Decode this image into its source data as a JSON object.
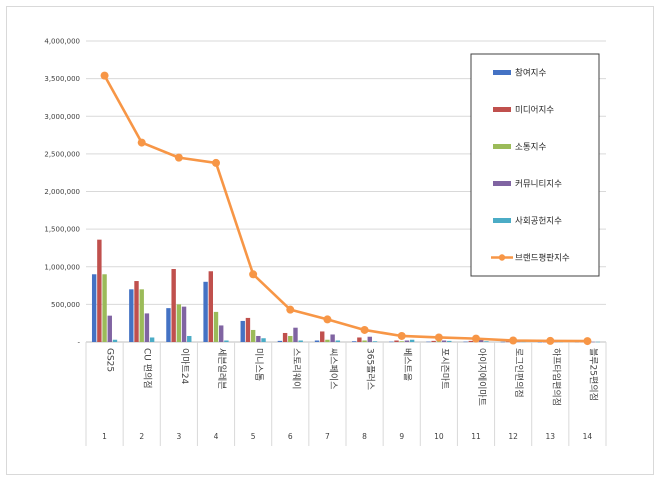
{
  "chart_data": {
    "type": "bar",
    "categories": [
      "GS25",
      "CU 편의점",
      "이마트24",
      "세븐일레븐",
      "미니스톱",
      "스토리웨이",
      "씨스페이스",
      "365플러스",
      "베스트올",
      "포시즌마트",
      "아이지에이마트",
      "로그인편의점",
      "하프타임편의점",
      "블루25편의점"
    ],
    "index_labels": [
      "1",
      "2",
      "3",
      "4",
      "5",
      "6",
      "7",
      "8",
      "9",
      "10",
      "11",
      "12",
      "13",
      "14"
    ],
    "ylim": [
      0,
      4000000
    ],
    "yticks": [
      0,
      500000,
      1000000,
      1500000,
      2000000,
      2500000,
      3000000,
      3500000,
      4000000
    ],
    "ytick_labels": [
      "-",
      "500,000",
      "1,000,000",
      "1,500,000",
      "2,000,000",
      "2,500,000",
      "3,000,000",
      "3,500,000",
      "4,000,000"
    ],
    "grid": true,
    "legend_position": "right",
    "series": [
      {
        "name": "참여지수",
        "type": "bar",
        "color": "#4472c4",
        "values": [
          900000,
          700000,
          450000,
          800000,
          280000,
          15000,
          20000,
          10000,
          5000,
          5000,
          5000,
          3000,
          2000,
          2000
        ]
      },
      {
        "name": "미디어지수",
        "type": "bar",
        "color": "#c0504d",
        "values": [
          1360000,
          810000,
          970000,
          940000,
          320000,
          120000,
          140000,
          60000,
          20000,
          15000,
          15000,
          5000,
          3000,
          3000
        ]
      },
      {
        "name": "소통지수",
        "type": "bar",
        "color": "#9bbb59",
        "values": [
          900000,
          700000,
          500000,
          400000,
          160000,
          80000,
          30000,
          20000,
          10000,
          10000,
          10000,
          5000,
          3000,
          3000
        ]
      },
      {
        "name": "커뮤니티지수",
        "type": "bar",
        "color": "#8064a2",
        "values": [
          350000,
          380000,
          470000,
          220000,
          80000,
          190000,
          100000,
          70000,
          20000,
          20000,
          30000,
          5000,
          3000,
          3000
        ]
      },
      {
        "name": "사회공헌지수",
        "type": "bar",
        "color": "#4bacc6",
        "values": [
          30000,
          60000,
          80000,
          20000,
          50000,
          20000,
          20000,
          10000,
          30000,
          15000,
          10000,
          5000,
          3000,
          3000
        ]
      },
      {
        "name": "브랜드평판지수",
        "type": "line",
        "color": "#f79646",
        "values": [
          3540000,
          2650000,
          2450000,
          2380000,
          900000,
          430000,
          300000,
          160000,
          80000,
          60000,
          45000,
          20000,
          15000,
          12000
        ]
      }
    ]
  }
}
